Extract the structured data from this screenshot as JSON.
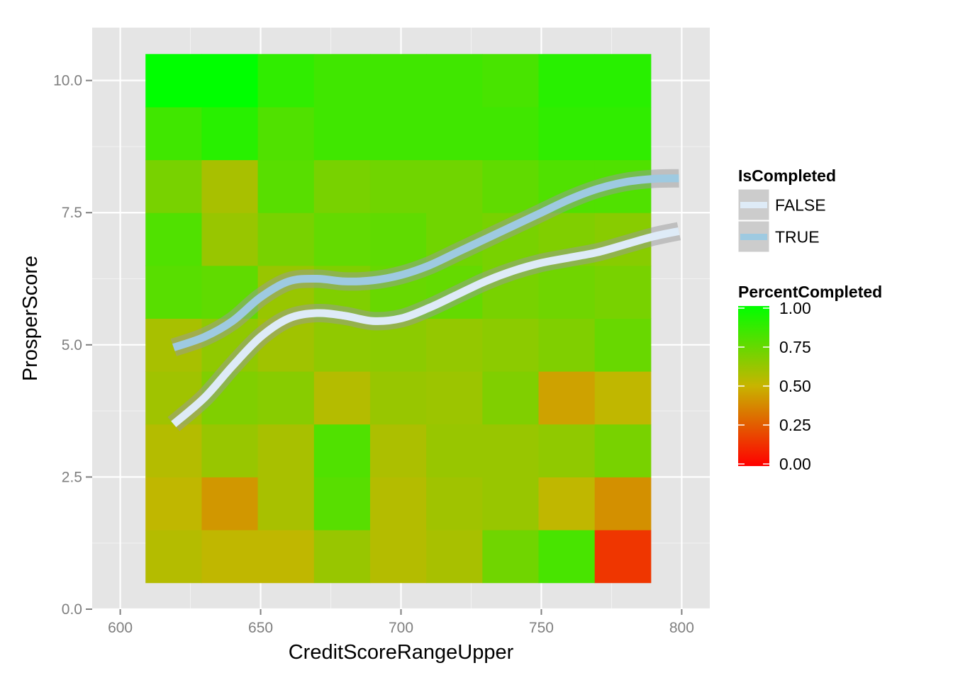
{
  "chart_data": {
    "type": "heatmap",
    "title": "",
    "xlabel": "CreditScoreRangeUpper",
    "ylabel": "ProsperScore",
    "xlim": [
      590,
      810
    ],
    "ylim": [
      0,
      11
    ],
    "x_ticks": [
      600,
      650,
      700,
      750,
      800
    ],
    "x_tick_labels": [
      "600",
      "650",
      "700",
      "750",
      "800"
    ],
    "y_ticks": [
      0,
      2.5,
      5,
      7.5,
      10
    ],
    "y_tick_labels": [
      "0.0",
      "2.5",
      "5.0",
      "7.5",
      "10.0"
    ],
    "grid": true,
    "tile_width": 20,
    "tile_height": 1,
    "x": [
      619,
      639,
      659,
      679,
      699,
      719,
      739,
      759,
      779
    ],
    "y": [
      1,
      2,
      3,
      4,
      5,
      6,
      7,
      8,
      9,
      10
    ],
    "percent_completed": [
      [
        0.55,
        0.52,
        0.52,
        0.62,
        0.55,
        0.58,
        0.72,
        0.82,
        0.15
      ],
      [
        0.52,
        0.42,
        0.58,
        0.78,
        0.55,
        0.6,
        0.62,
        0.52,
        0.4
      ],
      [
        0.55,
        0.62,
        0.58,
        0.8,
        0.57,
        0.62,
        0.62,
        0.64,
        0.7
      ],
      [
        0.6,
        0.68,
        0.66,
        0.55,
        0.62,
        0.61,
        0.68,
        0.45,
        0.52
      ],
      [
        0.58,
        0.64,
        0.6,
        0.64,
        0.65,
        0.63,
        0.65,
        0.68,
        0.74
      ],
      [
        0.78,
        0.76,
        0.62,
        0.68,
        0.74,
        0.75,
        0.7,
        0.72,
        0.7
      ],
      [
        0.8,
        0.62,
        0.7,
        0.75,
        0.76,
        0.72,
        0.7,
        0.68,
        0.66
      ],
      [
        0.7,
        0.58,
        0.78,
        0.7,
        0.72,
        0.72,
        0.76,
        0.8,
        0.8
      ],
      [
        0.84,
        0.9,
        0.8,
        0.84,
        0.84,
        0.84,
        0.84,
        0.88,
        0.88
      ],
      [
        1.0,
        1.0,
        0.88,
        0.84,
        0.84,
        0.84,
        0.82,
        0.9,
        0.9
      ]
    ],
    "series": [
      {
        "name": "FALSE",
        "color": "#deebf7",
        "x": [
          619,
          630,
          640,
          650,
          660,
          670,
          680,
          690,
          700,
          710,
          720,
          730,
          740,
          750,
          760,
          770,
          780,
          790,
          799
        ],
        "y": [
          3.5,
          4.0,
          4.6,
          5.15,
          5.5,
          5.6,
          5.55,
          5.45,
          5.5,
          5.7,
          5.95,
          6.2,
          6.4,
          6.55,
          6.65,
          6.75,
          6.9,
          7.05,
          7.15
        ]
      },
      {
        "name": "TRUE",
        "color": "#9ecae1",
        "x": [
          619,
          630,
          640,
          650,
          660,
          670,
          680,
          690,
          700,
          710,
          720,
          730,
          740,
          750,
          760,
          770,
          780,
          790,
          799
        ],
        "y": [
          4.95,
          5.15,
          5.45,
          5.9,
          6.2,
          6.25,
          6.2,
          6.22,
          6.32,
          6.5,
          6.75,
          7.0,
          7.25,
          7.5,
          7.75,
          7.95,
          8.08,
          8.14,
          8.15
        ]
      }
    ],
    "color_scale": {
      "low": "#ff0000",
      "mid": "#c8b400",
      "high": "#00ff00",
      "limits": [
        0,
        1
      ],
      "breaks": [
        0,
        0.25,
        0.5,
        0.75,
        1
      ],
      "break_labels": [
        "0.00",
        "0.25",
        "0.50",
        "0.75",
        "1.00"
      ]
    },
    "legends": [
      {
        "title": "IsCompleted",
        "entries": [
          "FALSE",
          "TRUE"
        ]
      },
      {
        "title": "PercentCompleted"
      }
    ],
    "legend_position": "right",
    "panel_bg": "#e5e5e5",
    "ribbon_color": "#999999"
  }
}
